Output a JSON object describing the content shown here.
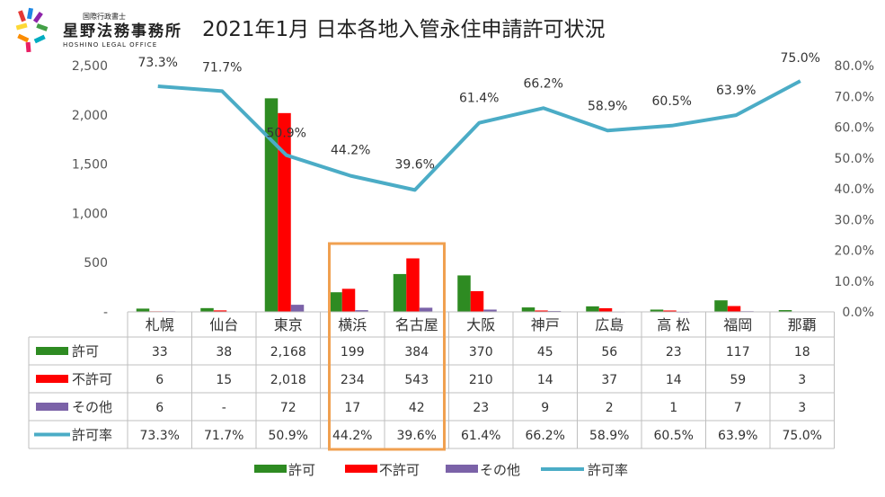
{
  "logo": {
    "org_small": "国際行政書士",
    "org_main": "星野法務事務所",
    "org_en": "HOSHINO LEGAL OFFICE"
  },
  "chart_data": {
    "type": "bar",
    "title": "2021年1月 日本各地入管永住申請許可状況",
    "categories": [
      "札幌",
      "仙台",
      "東京",
      "横浜",
      "名古屋",
      "大阪",
      "神戸",
      "広島",
      "高 松",
      "福岡",
      "那覇"
    ],
    "series": [
      {
        "name": "許可",
        "type": "bar",
        "axis": "left",
        "color": "#2e8b22",
        "values": [
          33,
          38,
          2168,
          199,
          384,
          370,
          45,
          56,
          23,
          117,
          18
        ],
        "display": [
          "33",
          "38",
          "2,168",
          "199",
          "384",
          "370",
          "45",
          "56",
          "23",
          "117",
          "18"
        ]
      },
      {
        "name": "不許可",
        "type": "bar",
        "axis": "left",
        "color": "#ff0000",
        "values": [
          6,
          15,
          2018,
          234,
          543,
          210,
          14,
          37,
          14,
          59,
          3
        ],
        "display": [
          "6",
          "15",
          "2,018",
          "234",
          "543",
          "210",
          "14",
          "37",
          "14",
          "59",
          "3"
        ]
      },
      {
        "name": "その他",
        "type": "bar",
        "axis": "left",
        "color": "#7b62a8",
        "values": [
          6,
          null,
          72,
          17,
          42,
          23,
          9,
          2,
          1,
          7,
          3
        ],
        "display": [
          "6",
          "-",
          "72",
          "17",
          "42",
          "23",
          "9",
          "2",
          "1",
          "7",
          "3"
        ]
      },
      {
        "name": "許可率",
        "type": "line",
        "axis": "right",
        "color": "#4bacc6",
        "values": [
          73.3,
          71.7,
          50.9,
          44.2,
          39.6,
          61.4,
          66.2,
          58.9,
          60.5,
          63.9,
          75.0
        ],
        "display": [
          "73.3%",
          "71.7%",
          "50.9%",
          "44.2%",
          "39.6%",
          "61.4%",
          "66.2%",
          "58.9%",
          "60.5%",
          "63.9%",
          "75.0%"
        ]
      }
    ],
    "y_left": {
      "ylim": [
        0,
        2500
      ],
      "ticks": [
        0,
        500,
        1000,
        1500,
        2000,
        2500
      ],
      "tick_labels": [
        "-",
        "500",
        "1,000",
        "1,500",
        "2,000",
        "2,500"
      ]
    },
    "y_right": {
      "ylim": [
        0,
        80
      ],
      "ticks": [
        0,
        10,
        20,
        30,
        40,
        50,
        60,
        70,
        80
      ],
      "tick_labels": [
        "0.0%",
        "10.0%",
        "20.0%",
        "30.0%",
        "40.0%",
        "50.0%",
        "60.0%",
        "70.0%",
        "80.0%"
      ]
    },
    "highlight": {
      "categories": [
        "横浜",
        "名古屋"
      ],
      "color": "#f0a050"
    },
    "legend_position": "bottom",
    "data_table": true
  }
}
